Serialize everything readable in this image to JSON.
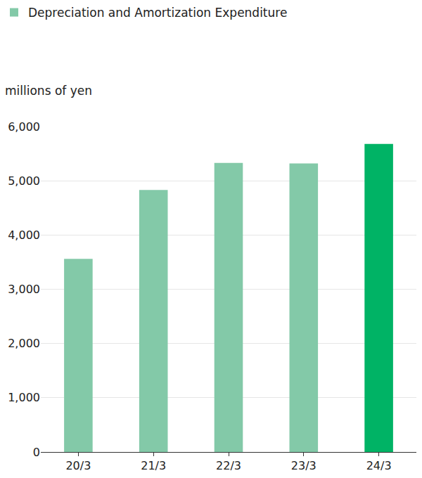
{
  "chart_data": {
    "type": "bar",
    "ylabel": "millions of yen",
    "categories": [
      "20/3",
      "21/3",
      "22/3",
      "23/3",
      "24/3"
    ],
    "series": [
      {
        "name": "Depreciation and Amortization Expenditure",
        "color": "#83c9a8",
        "colors": [
          "#83c9a8",
          "#83c9a8",
          "#83c9a8",
          "#83c9a8",
          "#00b365"
        ],
        "values": [
          3560,
          4830,
          5330,
          5320,
          5680
        ]
      }
    ],
    "ylim": [
      0,
      6000
    ],
    "yticks": [
      0,
      {
        "value": 1000,
        "label": "1,000"
      },
      {
        "value": 2000,
        "label": "2,000"
      },
      {
        "value": 3000,
        "label": "3,000"
      },
      {
        "value": 4000,
        "label": "4,000"
      },
      {
        "value": 5000,
        "label": "5,000"
      },
      {
        "value": 6000,
        "label": "6,000"
      }
    ],
    "grid": true,
    "legend": "upper left"
  }
}
